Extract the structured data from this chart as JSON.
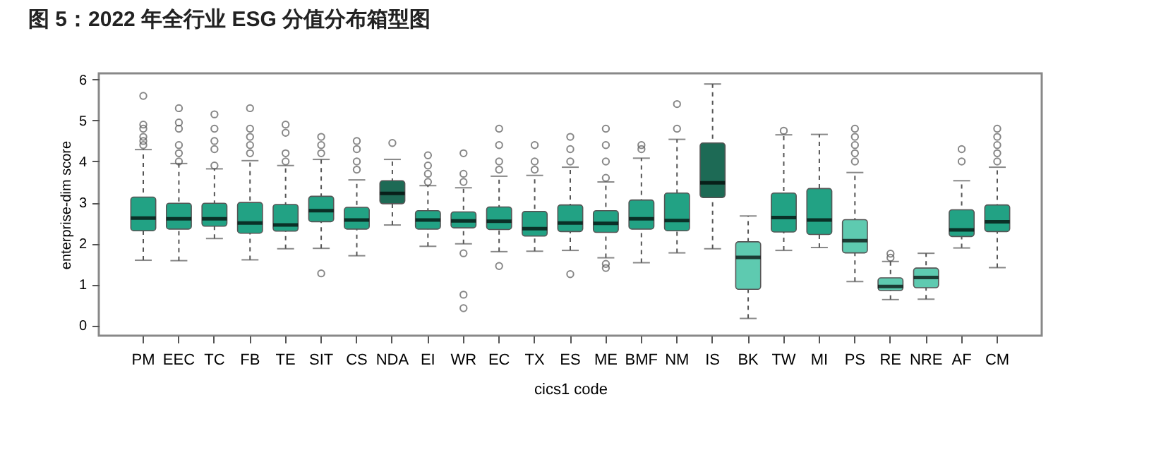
{
  "chart_data": {
    "type": "box",
    "title": "图 5：2022 年全行业 ESG 分值分布箱型图",
    "xlabel": "cics1 code",
    "ylabel": "enterprise-dim score",
    "categories": [
      "PM",
      "EEC",
      "TC",
      "FB",
      "TE",
      "SIT",
      "CS",
      "NDA",
      "EI",
      "WR",
      "EC",
      "TX",
      "ES",
      "ME",
      "BMF",
      "NM",
      "IS",
      "BK",
      "TW",
      "MI",
      "PS",
      "RE",
      "NRE",
      "AF",
      "CM"
    ],
    "colors": [
      "#22a284",
      "#22a284",
      "#22a284",
      "#22a284",
      "#22a284",
      "#22a284",
      "#22a284",
      "#1d6a55",
      "#22a284",
      "#22a284",
      "#22a284",
      "#22a284",
      "#22a284",
      "#22a284",
      "#22a284",
      "#22a284",
      "#1d6a55",
      "#5ecab0",
      "#22a284",
      "#22a284",
      "#5ecab0",
      "#5ecab0",
      "#5ecab0",
      "#22a284",
      "#22a284"
    ],
    "boxes": [
      {
        "low": 1.59,
        "q1": 2.31,
        "median": 2.62,
        "q3": 3.13,
        "high": 4.29,
        "outliers": [
          4.4,
          4.5,
          4.6,
          4.8,
          4.9,
          5.6
        ]
      },
      {
        "low": 1.58,
        "q1": 2.35,
        "median": 2.6,
        "q3": 2.98,
        "high": 3.95,
        "outliers": [
          4.0,
          4.2,
          4.4,
          4.8,
          4.95,
          5.3
        ]
      },
      {
        "low": 2.12,
        "q1": 2.42,
        "median": 2.6,
        "q3": 2.98,
        "high": 3.82,
        "outliers": [
          3.9,
          4.3,
          4.5,
          4.8,
          5.15
        ]
      },
      {
        "low": 1.6,
        "q1": 2.25,
        "median": 2.5,
        "q3": 3.0,
        "high": 4.02,
        "outliers": [
          4.2,
          4.4,
          4.6,
          4.8,
          5.3
        ]
      },
      {
        "low": 1.87,
        "q1": 2.3,
        "median": 2.45,
        "q3": 2.95,
        "high": 3.9,
        "outliers": [
          4.0,
          4.2,
          4.7,
          4.9
        ]
      },
      {
        "low": 1.88,
        "q1": 2.53,
        "median": 2.8,
        "q3": 3.15,
        "high": 4.05,
        "outliers": [
          1.27,
          4.2,
          4.4,
          4.6
        ]
      },
      {
        "low": 1.7,
        "q1": 2.35,
        "median": 2.57,
        "q3": 2.88,
        "high": 3.55,
        "outliers": [
          3.8,
          4.0,
          4.3,
          4.5
        ]
      },
      {
        "low": 2.45,
        "q1": 2.97,
        "median": 3.22,
        "q3": 3.53,
        "high": 4.05,
        "outliers": [
          4.45
        ]
      },
      {
        "low": 1.93,
        "q1": 2.35,
        "median": 2.57,
        "q3": 2.8,
        "high": 3.41,
        "outliers": [
          3.5,
          3.7,
          3.9,
          4.15
        ]
      },
      {
        "low": 1.99,
        "q1": 2.38,
        "median": 2.55,
        "q3": 2.77,
        "high": 3.36,
        "outliers": [
          0.42,
          0.75,
          1.76,
          3.5,
          3.7,
          4.2
        ]
      },
      {
        "low": 1.8,
        "q1": 2.34,
        "median": 2.54,
        "q3": 2.89,
        "high": 3.64,
        "outliers": [
          1.45,
          3.8,
          4.0,
          4.4,
          4.8
        ]
      },
      {
        "low": 1.81,
        "q1": 2.18,
        "median": 2.36,
        "q3": 2.78,
        "high": 3.66,
        "outliers": [
          3.8,
          4.0,
          4.4
        ]
      },
      {
        "low": 1.83,
        "q1": 2.29,
        "median": 2.5,
        "q3": 2.94,
        "high": 3.86,
        "outliers": [
          1.25,
          4.0,
          4.3,
          4.6
        ]
      },
      {
        "low": 1.65,
        "q1": 2.27,
        "median": 2.49,
        "q3": 2.8,
        "high": 3.5,
        "outliers": [
          1.4,
          1.5,
          3.6,
          4.0,
          4.4,
          4.8
        ]
      },
      {
        "low": 1.53,
        "q1": 2.35,
        "median": 2.6,
        "q3": 3.06,
        "high": 4.08,
        "outliers": [
          4.3,
          4.4
        ]
      },
      {
        "low": 1.77,
        "q1": 2.31,
        "median": 2.56,
        "q3": 3.23,
        "high": 4.54,
        "outliers": [
          4.8,
          5.4
        ]
      },
      {
        "low": 1.87,
        "q1": 3.12,
        "median": 3.48,
        "q3": 4.45,
        "high": 5.89
      },
      {
        "low": 0.17,
        "q1": 0.88,
        "median": 1.66,
        "q3": 2.04,
        "high": 2.67
      },
      {
        "low": 1.83,
        "q1": 2.28,
        "median": 2.63,
        "q3": 3.23,
        "high": 4.65,
        "outliers": [
          4.75
        ]
      },
      {
        "low": 1.9,
        "q1": 2.22,
        "median": 2.57,
        "q3": 3.34,
        "high": 4.66
      },
      {
        "low": 1.07,
        "q1": 1.77,
        "median": 2.07,
        "q3": 2.58,
        "high": 3.73,
        "outliers": [
          4.0,
          4.2,
          4.4,
          4.6,
          4.8
        ]
      },
      {
        "low": 0.63,
        "q1": 0.85,
        "median": 0.95,
        "q3": 1.16,
        "high": 1.56,
        "outliers": [
          1.65,
          1.75
        ]
      },
      {
        "low": 0.64,
        "q1": 0.92,
        "median": 1.17,
        "q3": 1.4,
        "high": 1.76
      },
      {
        "low": 1.89,
        "q1": 2.17,
        "median": 2.33,
        "q3": 2.82,
        "high": 3.53,
        "outliers": [
          4.0,
          4.3
        ]
      },
      {
        "low": 1.41,
        "q1": 2.29,
        "median": 2.53,
        "q3": 2.94,
        "high": 3.86,
        "outliers": [
          4.0,
          4.2,
          4.4,
          4.6,
          4.8
        ]
      }
    ],
    "ylim": [
      -0.25,
      6.15
    ],
    "yticks": [
      0,
      1,
      2,
      3,
      4,
      5,
      6
    ],
    "grid": false
  }
}
